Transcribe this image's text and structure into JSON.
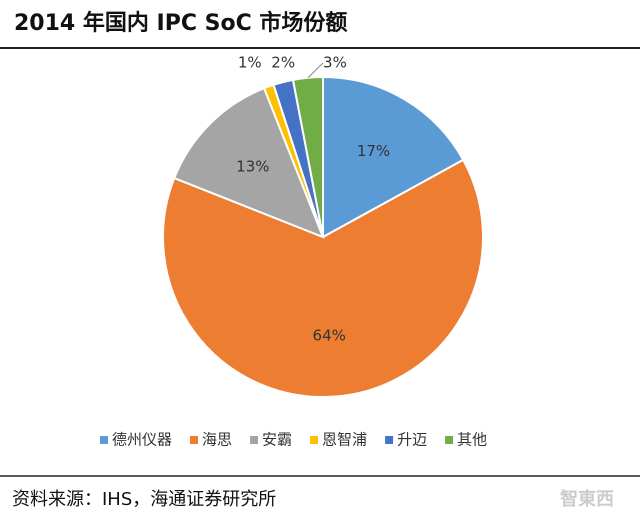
{
  "chart_data": {
    "type": "pie",
    "title": "2014 年国内 IPC SoC 市场份额",
    "categories": [
      "德州仪器",
      "海思",
      "安霸",
      "恩智浦",
      "升迈",
      "其他"
    ],
    "values": [
      17,
      64,
      13,
      1,
      2,
      3
    ],
    "value_labels": [
      "17%",
      "64%",
      "13%",
      "1%",
      "2%",
      "3%"
    ],
    "colors": [
      "#5b9bd5",
      "#ed7d31",
      "#a5a5a5",
      "#ffc000",
      "#4472c4",
      "#70ad47"
    ],
    "legend": "bottom"
  },
  "source": "资料来源：IHS，海通证券研究所",
  "watermark": "智東西"
}
